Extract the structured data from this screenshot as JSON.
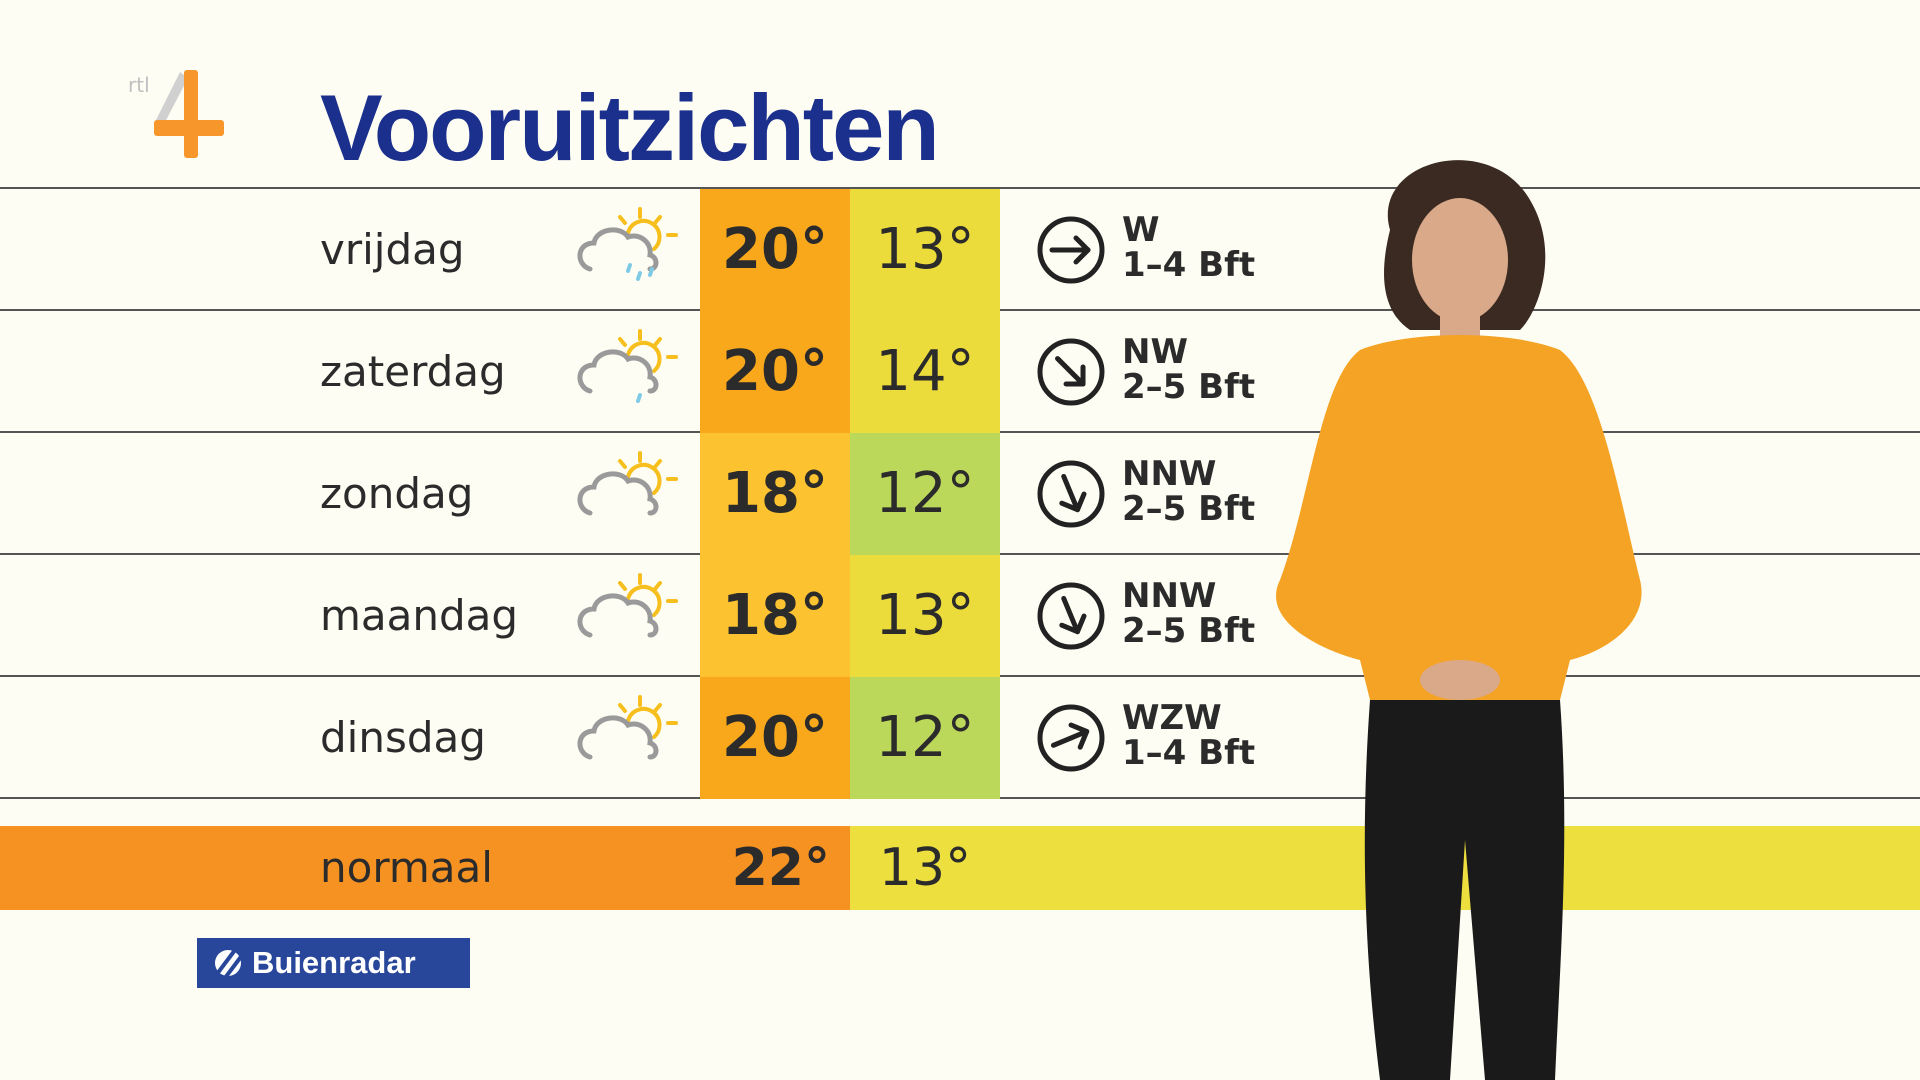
{
  "logo": {
    "text": "rtl 4",
    "colors": {
      "orange": "#f7962a",
      "grey": "#c8c8c8"
    }
  },
  "title": "Vooruitzichten",
  "rows": [
    {
      "day": "vrijdag",
      "icon": "partly-cloudy-rain-icon",
      "drops": 3,
      "max": "20°",
      "max_color": "#f9a81c",
      "min": "13°",
      "min_color": "#ebdb3b",
      "wind_dir": "W",
      "wind_force": "1–4 Bft"
    },
    {
      "day": "zaterdag",
      "icon": "partly-cloudy-light-rain-icon",
      "drops": 1,
      "max": "20°",
      "max_color": "#f9a81c",
      "min": "14°",
      "min_color": "#ebdb3b",
      "wind_dir": "NW",
      "wind_force": "2–5 Bft"
    },
    {
      "day": "zondag",
      "icon": "partly-cloudy-icon",
      "drops": 0,
      "max": "18°",
      "max_color": "#fcc22f",
      "min": "12°",
      "min_color": "#bcd85a",
      "wind_dir": "NNW",
      "wind_force": "2–5 Bft"
    },
    {
      "day": "maandag",
      "icon": "partly-cloudy-icon",
      "drops": 0,
      "max": "18°",
      "max_color": "#fcc22f",
      "min": "13°",
      "min_color": "#ebdb3b",
      "wind_dir": "NNW",
      "wind_force": "2–5 Bft"
    },
    {
      "day": "dinsdag",
      "icon": "partly-cloudy-icon",
      "drops": 0,
      "max": "20°",
      "max_color": "#f9a81c",
      "min": "12°",
      "min_color": "#bcd85a",
      "wind_dir": "WZW",
      "wind_force": "1–4 Bft"
    }
  ],
  "normal": {
    "label": "normaal",
    "max": "22°",
    "min": "13°",
    "max_color": "#f69222",
    "min_color": "#ecdf3e"
  },
  "brand": {
    "label": "Buienradar",
    "color": "#28479a"
  },
  "colors": {
    "title": "#1b2f8c",
    "background": "#fdfdf3"
  }
}
